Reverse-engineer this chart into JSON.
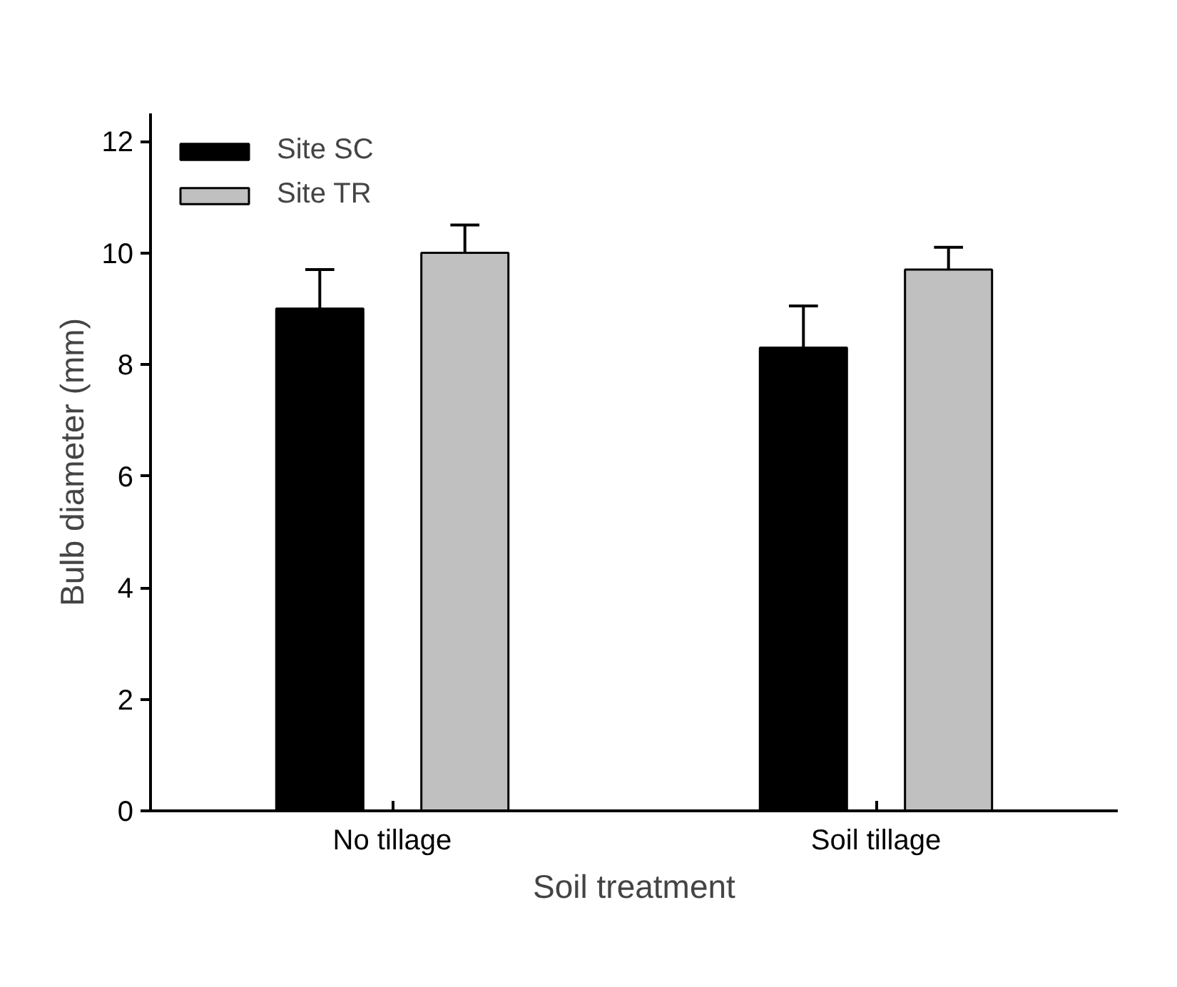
{
  "chart_data": {
    "type": "bar",
    "xlabel": "Soil treatment",
    "ylabel": "Bulb diameter (mm)",
    "categories": [
      "No tillage",
      "Soil tillage"
    ],
    "series": [
      {
        "name": "Site SC",
        "color": "#000000",
        "values": [
          9.0,
          8.3
        ],
        "errors": [
          [
            9.0,
            9.7
          ],
          [
            8.3,
            9.05
          ]
        ]
      },
      {
        "name": "Site TR",
        "color": "#c0c0c0",
        "values": [
          10.0,
          9.7
        ],
        "errors": [
          [
            10.0,
            10.5
          ],
          [
            9.7,
            10.1
          ]
        ]
      }
    ],
    "ylim": [
      0,
      12.5
    ],
    "yticks": [
      0,
      2,
      4,
      6,
      8,
      10,
      12
    ],
    "legend": "top left",
    "grid": false
  }
}
